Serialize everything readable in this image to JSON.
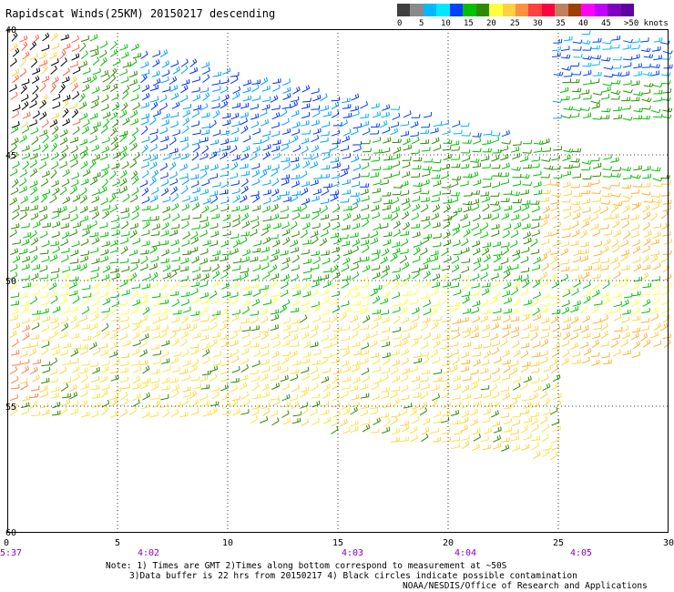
{
  "title": "Rapidscat Winds(25KM) 20150217 descending",
  "legend": {
    "labels": [
      "0",
      "5",
      "10",
      "15",
      "20",
      "25",
      "30",
      "35",
      "40",
      "45",
      ">50 knots"
    ],
    "colors": [
      "#404040",
      "#8a8a8a",
      "#00b8ff",
      "#00e8ff",
      "#0040ff",
      "#00c000",
      "#2e8b00",
      "#ffff40",
      "#ffd040",
      "#ff9040",
      "#ff4040",
      "#ff0040",
      "#c08060",
      "#a04000",
      "#ff00ff",
      "#c000ff",
      "#8000c0",
      "#6000a0"
    ]
  },
  "map": {
    "lat_labels": [
      "40",
      "45",
      "50",
      "55",
      "60"
    ],
    "lon_labels": [
      "0",
      "5",
      "10",
      "15",
      "20",
      "25",
      "30"
    ],
    "time_labels": [
      "5:37",
      "4:02",
      "4:03",
      "4:04",
      "4:05"
    ],
    "time_color": "#9000c0"
  },
  "notes": {
    "line1": "Note: 1) Times are GMT 2)Times along bottom correspond to measurement at ~50S",
    "line2": "3)Data buffer is 22 hrs from 20150217 4) Black circles indicate possible contamination",
    "credit": "NOAA/NESDIS/Office of Research and Applications"
  }
}
